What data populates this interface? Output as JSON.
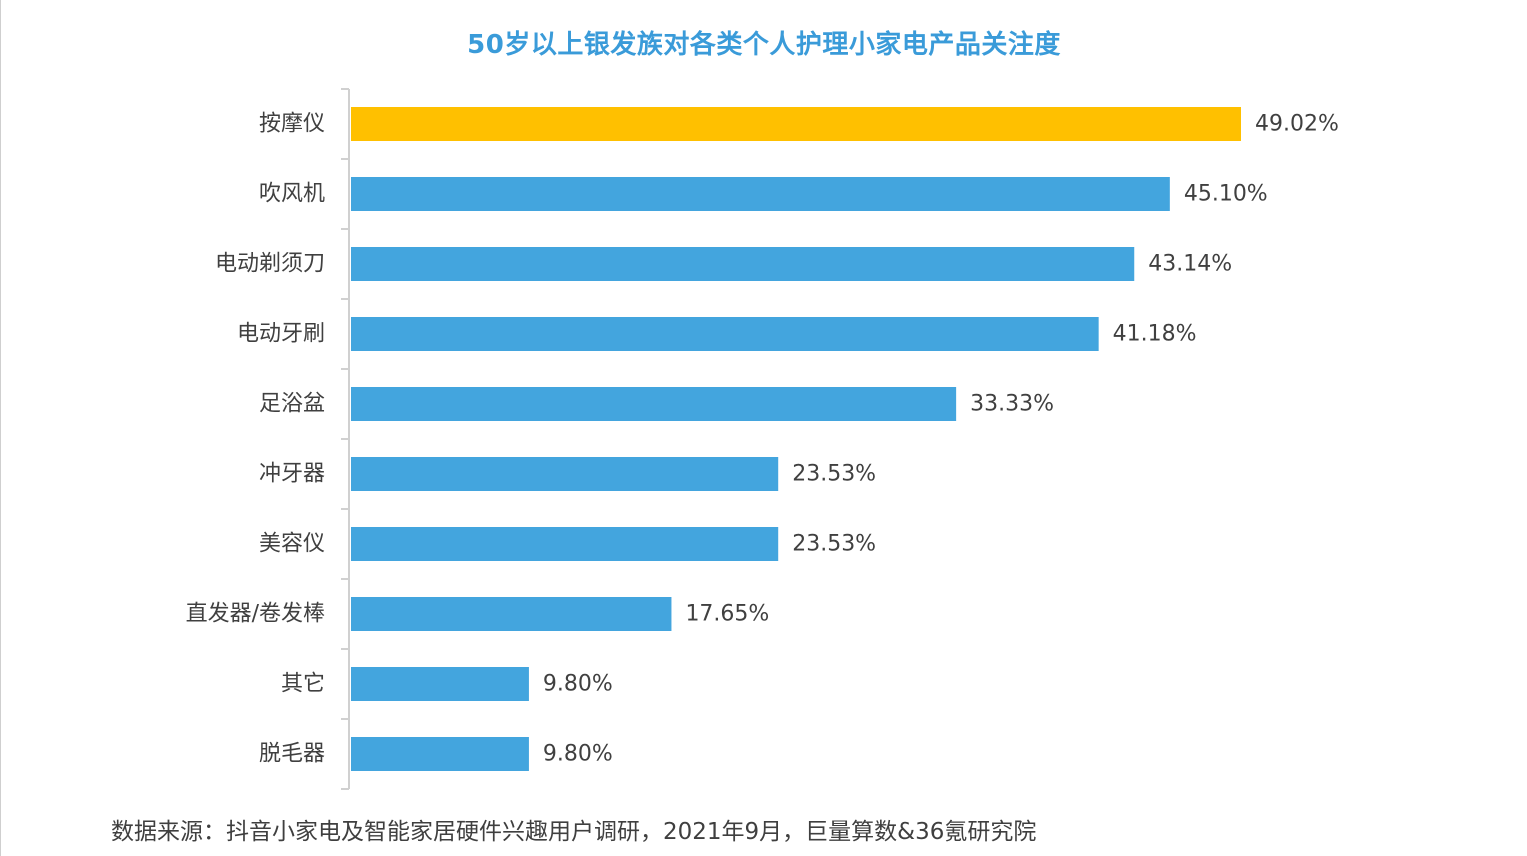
{
  "source_note": "数据来源：抖音小家电及智能家居硬件兴趣用户调研，2021年9月，巨量算数&36氪研究院",
  "colors": {
    "title": "#3a9bd9",
    "bar": "#43a5de",
    "highlight_bar": "#ffc000",
    "highlight_label": "#ffc000",
    "label": "#404040",
    "axis": "#d0d0d0"
  },
  "chart_data": {
    "type": "bar",
    "orientation": "horizontal",
    "title": "50岁以上银发族对各类个人护理小家电产品关注度",
    "categories": [
      "按摩仪",
      "吹风机",
      "电动剃须刀",
      "电动牙刷",
      "足浴盆",
      "冲牙器",
      "美容仪",
      "直发器/卷发棒",
      "其它",
      "脱毛器"
    ],
    "values": [
      49.02,
      45.1,
      43.14,
      41.18,
      33.33,
      23.53,
      23.53,
      17.65,
      9.8,
      9.8
    ],
    "value_labels": [
      "49.02%",
      "45.10%",
      "43.14%",
      "41.18%",
      "33.33%",
      "23.53%",
      "23.53%",
      "17.65%",
      "9.80%",
      "9.80%"
    ],
    "highlight_index": 0,
    "xlim": [
      0,
      50
    ],
    "grid": false,
    "legend": "none"
  }
}
